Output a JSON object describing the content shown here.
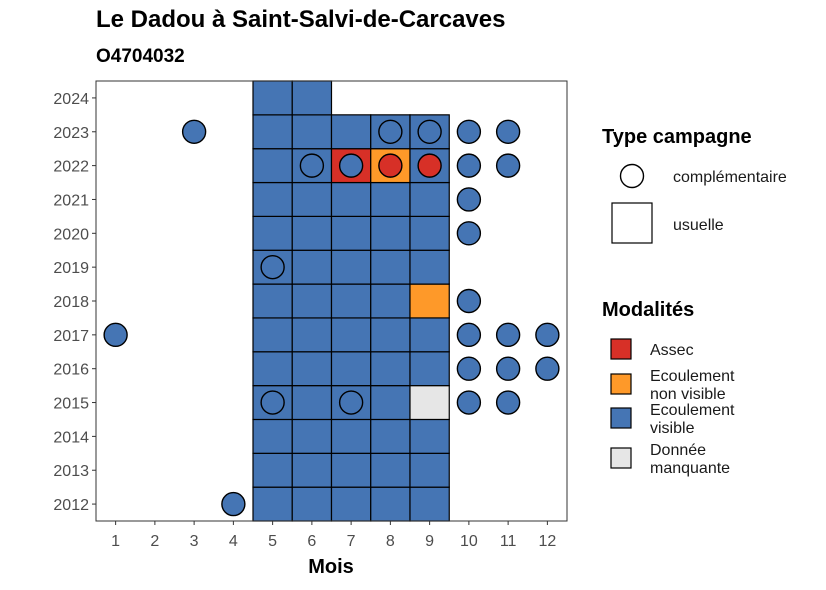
{
  "chart_data": {
    "type": "heatmap",
    "title": "Le Dadou à Saint-Salvi-de-Carcaves",
    "subtitle": "O4704032",
    "xlabel": "Mois",
    "ylabel": "",
    "x_ticks": [
      1,
      2,
      3,
      4,
      5,
      6,
      7,
      8,
      9,
      10,
      11,
      12
    ],
    "y_ticks": [
      2012,
      2013,
      2014,
      2015,
      2016,
      2017,
      2018,
      2019,
      2020,
      2021,
      2022,
      2023,
      2024
    ],
    "xlim": [
      0.5,
      12.5
    ],
    "ylim": [
      2011.5,
      2024.5
    ],
    "colors": {
      "Assec": "#d73027",
      "Ecoulement non visible": "#fe9929",
      "Ecoulement visible": "#4575b4",
      "Donnée manquante": "#e6e6e6"
    },
    "legend_type": {
      "title": "Type campagne",
      "items": [
        {
          "key": "complementaire",
          "label": "complémentaire"
        },
        {
          "key": "usuelle",
          "label": "usuelle"
        }
      ]
    },
    "legend_modalites": {
      "title": "Modalités",
      "items": [
        {
          "key": "Assec",
          "lines": [
            "Assec"
          ]
        },
        {
          "key": "Ecoulement non visible",
          "lines": [
            "Ecoulement",
            "non visible"
          ]
        },
        {
          "key": "Ecoulement visible",
          "lines": [
            "Ecoulement",
            "visible"
          ]
        },
        {
          "key": "Donnée manquante",
          "lines": [
            "Donnée",
            "manquante"
          ]
        }
      ]
    },
    "usuelle": [
      {
        "year": 2012,
        "month": 5,
        "m": "Ecoulement visible"
      },
      {
        "year": 2012,
        "month": 6,
        "m": "Ecoulement visible"
      },
      {
        "year": 2012,
        "month": 7,
        "m": "Ecoulement visible"
      },
      {
        "year": 2012,
        "month": 8,
        "m": "Ecoulement visible"
      },
      {
        "year": 2012,
        "month": 9,
        "m": "Ecoulement visible"
      },
      {
        "year": 2013,
        "month": 5,
        "m": "Ecoulement visible"
      },
      {
        "year": 2013,
        "month": 6,
        "m": "Ecoulement visible"
      },
      {
        "year": 2013,
        "month": 7,
        "m": "Ecoulement visible"
      },
      {
        "year": 2013,
        "month": 8,
        "m": "Ecoulement visible"
      },
      {
        "year": 2013,
        "month": 9,
        "m": "Ecoulement visible"
      },
      {
        "year": 2014,
        "month": 5,
        "m": "Ecoulement visible"
      },
      {
        "year": 2014,
        "month": 6,
        "m": "Ecoulement visible"
      },
      {
        "year": 2014,
        "month": 7,
        "m": "Ecoulement visible"
      },
      {
        "year": 2014,
        "month": 8,
        "m": "Ecoulement visible"
      },
      {
        "year": 2014,
        "month": 9,
        "m": "Ecoulement visible"
      },
      {
        "year": 2015,
        "month": 5,
        "m": "Ecoulement visible"
      },
      {
        "year": 2015,
        "month": 6,
        "m": "Ecoulement visible"
      },
      {
        "year": 2015,
        "month": 7,
        "m": "Ecoulement visible"
      },
      {
        "year": 2015,
        "month": 8,
        "m": "Ecoulement visible"
      },
      {
        "year": 2015,
        "month": 9,
        "m": "Donnée manquante"
      },
      {
        "year": 2016,
        "month": 5,
        "m": "Ecoulement visible"
      },
      {
        "year": 2016,
        "month": 6,
        "m": "Ecoulement visible"
      },
      {
        "year": 2016,
        "month": 7,
        "m": "Ecoulement visible"
      },
      {
        "year": 2016,
        "month": 8,
        "m": "Ecoulement visible"
      },
      {
        "year": 2016,
        "month": 9,
        "m": "Ecoulement visible"
      },
      {
        "year": 2017,
        "month": 5,
        "m": "Ecoulement visible"
      },
      {
        "year": 2017,
        "month": 6,
        "m": "Ecoulement visible"
      },
      {
        "year": 2017,
        "month": 7,
        "m": "Ecoulement visible"
      },
      {
        "year": 2017,
        "month": 8,
        "m": "Ecoulement visible"
      },
      {
        "year": 2017,
        "month": 9,
        "m": "Ecoulement visible"
      },
      {
        "year": 2018,
        "month": 5,
        "m": "Ecoulement visible"
      },
      {
        "year": 2018,
        "month": 6,
        "m": "Ecoulement visible"
      },
      {
        "year": 2018,
        "month": 7,
        "m": "Ecoulement visible"
      },
      {
        "year": 2018,
        "month": 8,
        "m": "Ecoulement visible"
      },
      {
        "year": 2018,
        "month": 9,
        "m": "Ecoulement non visible"
      },
      {
        "year": 2019,
        "month": 5,
        "m": "Ecoulement visible"
      },
      {
        "year": 2019,
        "month": 6,
        "m": "Ecoulement visible"
      },
      {
        "year": 2019,
        "month": 7,
        "m": "Ecoulement visible"
      },
      {
        "year": 2019,
        "month": 8,
        "m": "Ecoulement visible"
      },
      {
        "year": 2019,
        "month": 9,
        "m": "Ecoulement visible"
      },
      {
        "year": 2020,
        "month": 5,
        "m": "Ecoulement visible"
      },
      {
        "year": 2020,
        "month": 6,
        "m": "Ecoulement visible"
      },
      {
        "year": 2020,
        "month": 7,
        "m": "Ecoulement visible"
      },
      {
        "year": 2020,
        "month": 8,
        "m": "Ecoulement visible"
      },
      {
        "year": 2020,
        "month": 9,
        "m": "Ecoulement visible"
      },
      {
        "year": 2021,
        "month": 5,
        "m": "Ecoulement visible"
      },
      {
        "year": 2021,
        "month": 6,
        "m": "Ecoulement visible"
      },
      {
        "year": 2021,
        "month": 7,
        "m": "Ecoulement visible"
      },
      {
        "year": 2021,
        "month": 8,
        "m": "Ecoulement visible"
      },
      {
        "year": 2021,
        "month": 9,
        "m": "Ecoulement visible"
      },
      {
        "year": 2022,
        "month": 5,
        "m": "Ecoulement visible"
      },
      {
        "year": 2022,
        "month": 6,
        "m": "Ecoulement visible"
      },
      {
        "year": 2022,
        "month": 7,
        "m": "Assec"
      },
      {
        "year": 2022,
        "month": 8,
        "m": "Ecoulement non visible"
      },
      {
        "year": 2022,
        "month": 9,
        "m": "Ecoulement visible"
      },
      {
        "year": 2023,
        "month": 5,
        "m": "Ecoulement visible"
      },
      {
        "year": 2023,
        "month": 6,
        "m": "Ecoulement visible"
      },
      {
        "year": 2023,
        "month": 7,
        "m": "Ecoulement visible"
      },
      {
        "year": 2023,
        "month": 8,
        "m": "Ecoulement visible"
      },
      {
        "year": 2023,
        "month": 9,
        "m": "Ecoulement visible"
      },
      {
        "year": 2024,
        "month": 5,
        "m": "Ecoulement visible"
      },
      {
        "year": 2024,
        "month": 6,
        "m": "Ecoulement visible"
      }
    ],
    "complementaire": [
      {
        "year": 2012,
        "month": 4,
        "m": "Ecoulement visible"
      },
      {
        "year": 2015,
        "month": 5,
        "m": "Ecoulement visible"
      },
      {
        "year": 2015,
        "month": 7,
        "m": "Ecoulement visible"
      },
      {
        "year": 2015,
        "month": 10,
        "m": "Ecoulement visible"
      },
      {
        "year": 2015,
        "month": 11,
        "m": "Ecoulement visible"
      },
      {
        "year": 2016,
        "month": 10,
        "m": "Ecoulement visible"
      },
      {
        "year": 2016,
        "month": 11,
        "m": "Ecoulement visible"
      },
      {
        "year": 2016,
        "month": 12,
        "m": "Ecoulement visible"
      },
      {
        "year": 2017,
        "month": 1,
        "m": "Ecoulement visible"
      },
      {
        "year": 2017,
        "month": 10,
        "m": "Ecoulement visible"
      },
      {
        "year": 2017,
        "month": 11,
        "m": "Ecoulement visible"
      },
      {
        "year": 2017,
        "month": 12,
        "m": "Ecoulement visible"
      },
      {
        "year": 2018,
        "month": 10,
        "m": "Ecoulement visible"
      },
      {
        "year": 2019,
        "month": 5,
        "m": "Ecoulement visible"
      },
      {
        "year": 2020,
        "month": 10,
        "m": "Ecoulement visible"
      },
      {
        "year": 2021,
        "month": 10,
        "m": "Ecoulement visible"
      },
      {
        "year": 2022,
        "month": 6,
        "m": "Ecoulement visible"
      },
      {
        "year": 2022,
        "month": 7,
        "m": "Ecoulement visible"
      },
      {
        "year": 2022,
        "month": 8,
        "m": "Assec"
      },
      {
        "year": 2022,
        "month": 9,
        "m": "Assec"
      },
      {
        "year": 2022,
        "month": 10,
        "m": "Ecoulement visible"
      },
      {
        "year": 2022,
        "month": 11,
        "m": "Ecoulement visible"
      },
      {
        "year": 2023,
        "month": 3,
        "m": "Ecoulement visible"
      },
      {
        "year": 2023,
        "month": 8,
        "m": "Ecoulement visible"
      },
      {
        "year": 2023,
        "month": 9,
        "m": "Ecoulement visible"
      },
      {
        "year": 2023,
        "month": 10,
        "m": "Ecoulement visible"
      },
      {
        "year": 2023,
        "month": 11,
        "m": "Ecoulement visible"
      }
    ]
  }
}
